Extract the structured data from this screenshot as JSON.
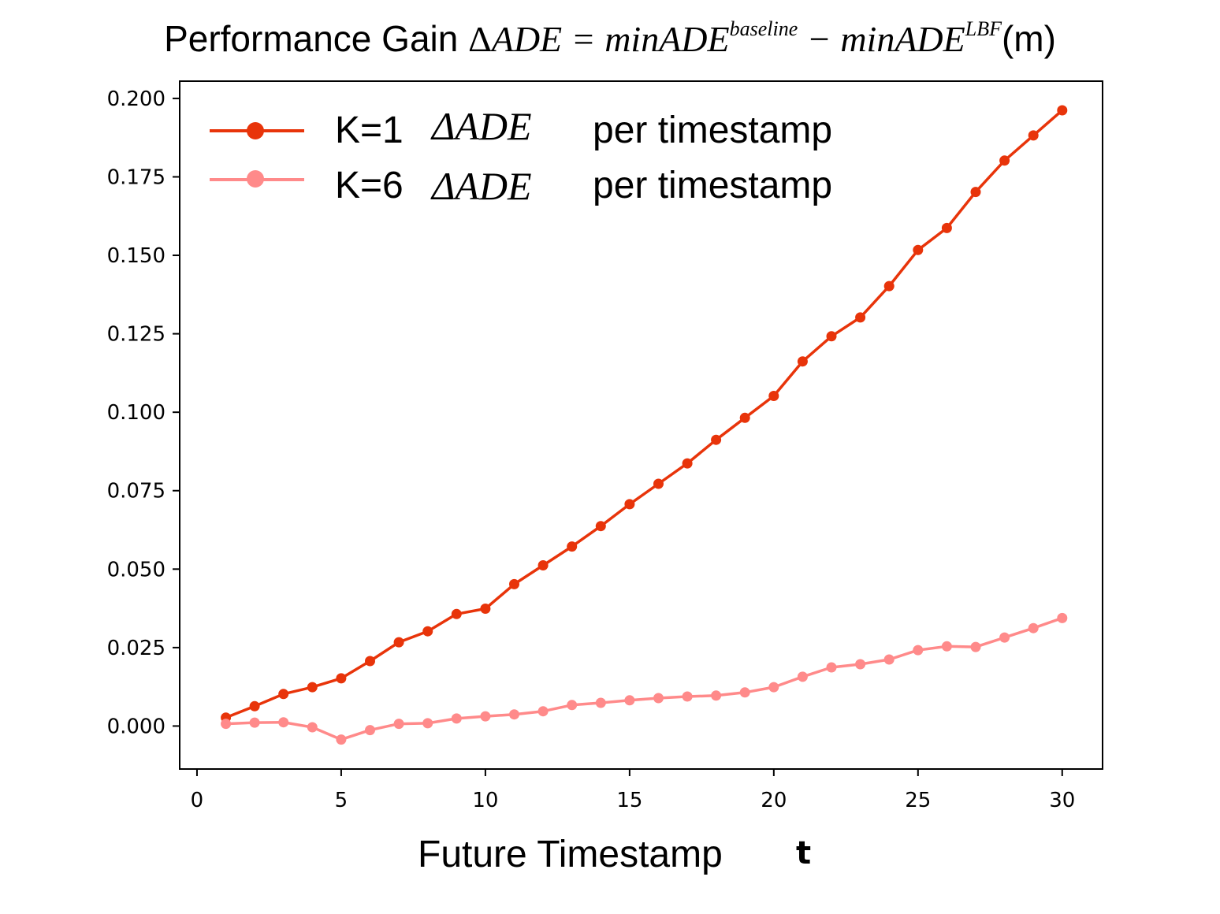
{
  "chart_data": {
    "type": "line",
    "title": {
      "prefix": "Performance Gain ",
      "delta": "Δ",
      "lhs": "ADE",
      "eq": " = ",
      "term1": "minADE",
      "sup1": "baseline",
      "minus": " − ",
      "term2": "minADE",
      "sup2": "LBF",
      "unit": "(m)"
    },
    "xlabel": "Future Timestamp",
    "xlabel_var": "t",
    "ylabel": "",
    "xlim": [
      -0.6,
      31.4
    ],
    "ylim": [
      -0.0137,
      0.2055
    ],
    "xticks": [
      0,
      5,
      10,
      15,
      20,
      25,
      30
    ],
    "xtick_labels": [
      "0",
      "5",
      "10",
      "15",
      "20",
      "25",
      "30"
    ],
    "yticks": [
      0.0,
      0.025,
      0.05,
      0.075,
      0.1,
      0.125,
      0.15,
      0.175,
      0.2
    ],
    "ytick_labels": [
      "0.000",
      "0.025",
      "0.050",
      "0.075",
      "0.100",
      "0.125",
      "0.150",
      "0.175",
      "0.200"
    ],
    "grid": false,
    "legend_position": "top-left",
    "x": [
      1,
      2,
      3,
      4,
      5,
      6,
      7,
      8,
      9,
      10,
      11,
      12,
      13,
      14,
      15,
      16,
      17,
      18,
      19,
      20,
      21,
      22,
      23,
      24,
      25,
      26,
      27,
      28,
      29,
      30
    ],
    "series": [
      {
        "name": "K=1",
        "legend_math": "ΔADE",
        "legend_suffix": "per timestamp",
        "color": "#e8340a",
        "values": [
          0.0027,
          0.0063,
          0.0102,
          0.0124,
          0.0152,
          0.0207,
          0.0267,
          0.0302,
          0.0357,
          0.0374,
          0.0452,
          0.0512,
          0.0572,
          0.0637,
          0.0707,
          0.0772,
          0.0837,
          0.0912,
          0.0982,
          0.1052,
          0.1162,
          0.1242,
          0.1302,
          0.1402,
          0.1517,
          0.1587,
          0.1702,
          0.1802,
          0.1882,
          0.1962
        ]
      },
      {
        "name": "K=6",
        "legend_math": "ΔADE",
        "legend_suffix": "per timestamp",
        "color": "#ff8a8a",
        "values": [
          0.0007,
          0.0011,
          0.0012,
          -0.0004,
          -0.0043,
          -0.0013,
          0.0007,
          0.0009,
          0.0024,
          0.0031,
          0.0037,
          0.0047,
          0.0067,
          0.0074,
          0.0082,
          0.0089,
          0.0094,
          0.0097,
          0.0107,
          0.0124,
          0.0157,
          0.0187,
          0.0197,
          0.0212,
          0.0242,
          0.0254,
          0.0252,
          0.0282,
          0.0312,
          0.0344
        ]
      }
    ]
  }
}
